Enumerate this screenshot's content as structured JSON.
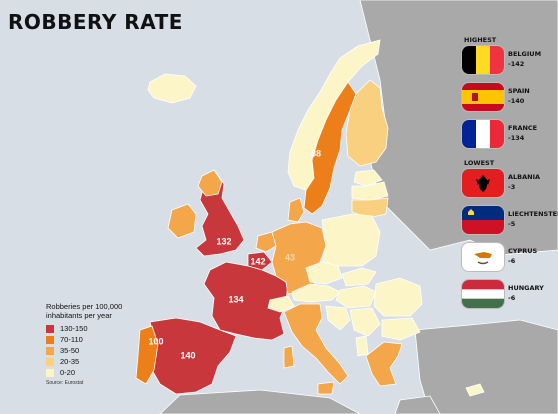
{
  "title": "ROBBERY RATE",
  "legend": {
    "title": "Robberies per 100,000 inhabitants per year",
    "items": [
      {
        "label": "130-150",
        "color": "#c8373b"
      },
      {
        "label": "70-110",
        "color": "#ec7f1a"
      },
      {
        "label": "35-50",
        "color": "#f3a64a"
      },
      {
        "label": "20-35",
        "color": "#f8d07f"
      },
      {
        "label": "0-20",
        "color": "#fbf5c8"
      }
    ],
    "source": "Source: Eurostat"
  },
  "highest": {
    "heading": "HIGHEST",
    "items": [
      {
        "country": "BELGIUM",
        "value": "-142",
        "flag": "belgium-flag-icon"
      },
      {
        "country": "SPAIN",
        "value": "-140",
        "flag": "spain-flag-icon"
      },
      {
        "country": "FRANCE",
        "value": "-134",
        "flag": "france-flag-icon"
      }
    ]
  },
  "lowest": {
    "heading": "LOWEST",
    "items": [
      {
        "country": "ALBANIA",
        "value": "-3",
        "flag": "albania-flag-icon"
      },
      {
        "country": "LIECHTENSTEIN",
        "value": "-5",
        "flag": "liechtenstein-flag-icon"
      },
      {
        "country": "CYPRUS",
        "value": "-6",
        "flag": "cyprus-flag-icon"
      },
      {
        "country": "HUNGARY",
        "value": "-6",
        "flag": "hungary-flag-icon"
      }
    ]
  },
  "map_labels": {
    "uk": "132",
    "belgium": "142",
    "france": "134",
    "spain": "140",
    "portugal": "100",
    "sweden": "88",
    "germany": "43"
  },
  "colors": {
    "sea": "#d7dee6",
    "non_data_land": "#a9a9a9",
    "border": "#ffffff"
  }
}
